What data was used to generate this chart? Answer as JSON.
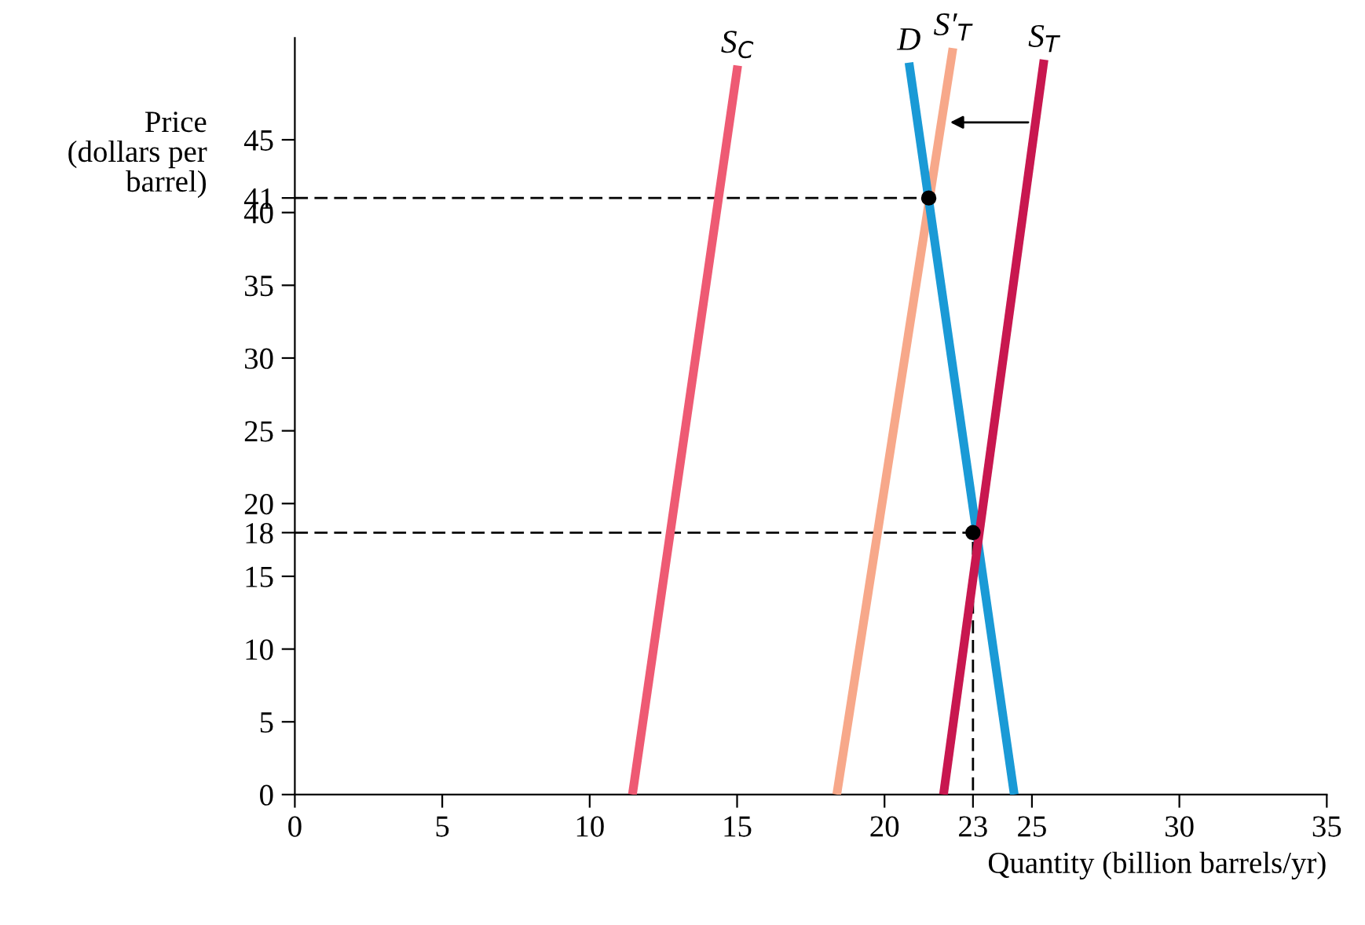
{
  "chart_data": {
    "type": "line",
    "xlabel": "Quantity (billion barrels/yr)",
    "ylabel": "Price\n(dollars per\nbarrel)",
    "xlim": [
      0,
      35
    ],
    "ylim": [
      0,
      52
    ],
    "xticks": [
      0,
      5,
      10,
      15,
      20,
      23,
      25,
      30,
      35
    ],
    "yticks": [
      0,
      5,
      10,
      15,
      18,
      20,
      25,
      30,
      35,
      40,
      41,
      45
    ],
    "grid": false,
    "legend": false,
    "marker": "none",
    "line_style": "solid",
    "series": [
      {
        "name": "S$_{C}$",
        "color": "#ee5a73",
        "x": [
          11.45,
          15.02
        ],
        "values": [
          0,
          50.1
        ]
      },
      {
        "name": "S′$_{T}$",
        "color": "#f7a88a",
        "x": [
          18.38,
          22.32
        ],
        "values": [
          0,
          51.3
        ]
      },
      {
        "name": "D",
        "color": "#1a9ad6",
        "x": [
          20.83,
          24.4
        ],
        "values": [
          50.3,
          0
        ]
      },
      {
        "name": "S$_{T}$",
        "color": "#c8174f",
        "x": [
          22.0,
          25.41
        ],
        "values": [
          0,
          50.5
        ]
      },
      {
        "color": "#000000",
        "line_style": "dashed",
        "x": [
          0,
          21.5
        ],
        "values": [
          41,
          41
        ]
      },
      {
        "color": "#000000",
        "line_style": "dashed",
        "x": [
          0,
          23,
          23
        ],
        "values": [
          18,
          18,
          0
        ]
      },
      {
        "type": "scatter",
        "color": "#000000",
        "marker": "circle",
        "x": [
          21.5,
          23
        ],
        "values": [
          41,
          18
        ]
      }
    ]
  }
}
